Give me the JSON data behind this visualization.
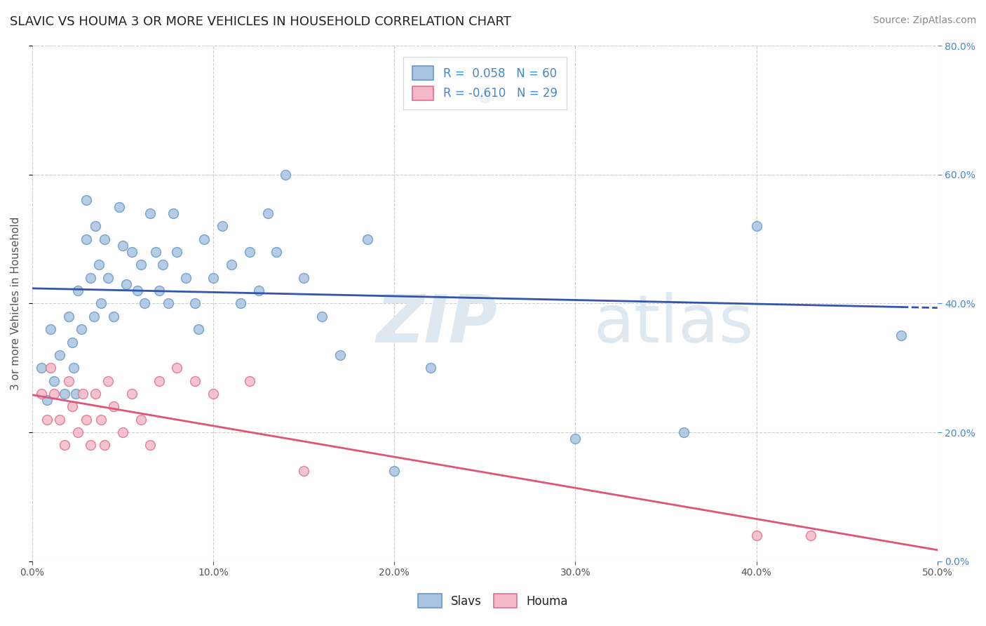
{
  "title": "SLAVIC VS HOUMA 3 OR MORE VEHICLES IN HOUSEHOLD CORRELATION CHART",
  "source": "Source: ZipAtlas.com",
  "ylabel": "3 or more Vehicles in Household",
  "xlim": [
    0.0,
    0.5
  ],
  "ylim": [
    0.0,
    0.8
  ],
  "xticks": [
    0.0,
    0.1,
    0.2,
    0.3,
    0.4,
    0.5
  ],
  "xticklabels": [
    "0.0%",
    "10.0%",
    "20.0%",
    "30.0%",
    "40.0%",
    "50.0%"
  ],
  "yticks": [
    0.0,
    0.2,
    0.4,
    0.6,
    0.8
  ],
  "yticklabels": [
    "0.0%",
    "20.0%",
    "40.0%",
    "60.0%",
    "80.0%"
  ],
  "slavs_color": "#a8c4e0",
  "houma_color": "#f4b8c8",
  "slavs_edge": "#6699cc",
  "houma_edge": "#e07090",
  "regression_slavs_color": "#3355aa",
  "regression_houma_color": "#dd5577",
  "legend_box_slavs": "#a8c4e0",
  "legend_box_houma": "#f4b8c8",
  "R_slavs": 0.058,
  "N_slavs": 60,
  "R_houma": -0.61,
  "N_houma": 29,
  "slavs_x": [
    0.005,
    0.008,
    0.01,
    0.012,
    0.015,
    0.018,
    0.02,
    0.022,
    0.023,
    0.024,
    0.025,
    0.027,
    0.03,
    0.03,
    0.032,
    0.034,
    0.035,
    0.037,
    0.038,
    0.04,
    0.042,
    0.045,
    0.048,
    0.05,
    0.052,
    0.055,
    0.058,
    0.06,
    0.062,
    0.065,
    0.068,
    0.07,
    0.072,
    0.075,
    0.078,
    0.08,
    0.085,
    0.09,
    0.092,
    0.095,
    0.1,
    0.105,
    0.11,
    0.115,
    0.12,
    0.125,
    0.13,
    0.135,
    0.14,
    0.15,
    0.16,
    0.17,
    0.185,
    0.2,
    0.22,
    0.25,
    0.3,
    0.36,
    0.4,
    0.48
  ],
  "slavs_y": [
    0.3,
    0.25,
    0.36,
    0.28,
    0.32,
    0.26,
    0.38,
    0.34,
    0.3,
    0.26,
    0.42,
    0.36,
    0.56,
    0.5,
    0.44,
    0.38,
    0.52,
    0.46,
    0.4,
    0.5,
    0.44,
    0.38,
    0.55,
    0.49,
    0.43,
    0.48,
    0.42,
    0.46,
    0.4,
    0.54,
    0.48,
    0.42,
    0.46,
    0.4,
    0.54,
    0.48,
    0.44,
    0.4,
    0.36,
    0.5,
    0.44,
    0.52,
    0.46,
    0.4,
    0.48,
    0.42,
    0.54,
    0.48,
    0.6,
    0.44,
    0.38,
    0.32,
    0.5,
    0.14,
    0.3,
    0.72,
    0.19,
    0.2,
    0.52,
    0.35
  ],
  "houma_x": [
    0.005,
    0.008,
    0.01,
    0.012,
    0.015,
    0.018,
    0.02,
    0.022,
    0.025,
    0.028,
    0.03,
    0.032,
    0.035,
    0.038,
    0.04,
    0.042,
    0.045,
    0.05,
    0.055,
    0.06,
    0.065,
    0.07,
    0.08,
    0.09,
    0.1,
    0.12,
    0.15,
    0.4,
    0.43
  ],
  "houma_y": [
    0.26,
    0.22,
    0.3,
    0.26,
    0.22,
    0.18,
    0.28,
    0.24,
    0.2,
    0.26,
    0.22,
    0.18,
    0.26,
    0.22,
    0.18,
    0.28,
    0.24,
    0.2,
    0.26,
    0.22,
    0.18,
    0.28,
    0.3,
    0.28,
    0.26,
    0.28,
    0.14,
    0.04,
    0.04
  ],
  "watermark_zip": "ZIP",
  "watermark_atlas": "atlas",
  "watermark_color": "#dde8f0",
  "grid_color": "#cccccc",
  "background_color": "#ffffff",
  "title_fontsize": 13,
  "axis_label_fontsize": 11,
  "tick_fontsize": 10,
  "legend_fontsize": 12,
  "source_fontsize": 10,
  "dot_size": 100
}
